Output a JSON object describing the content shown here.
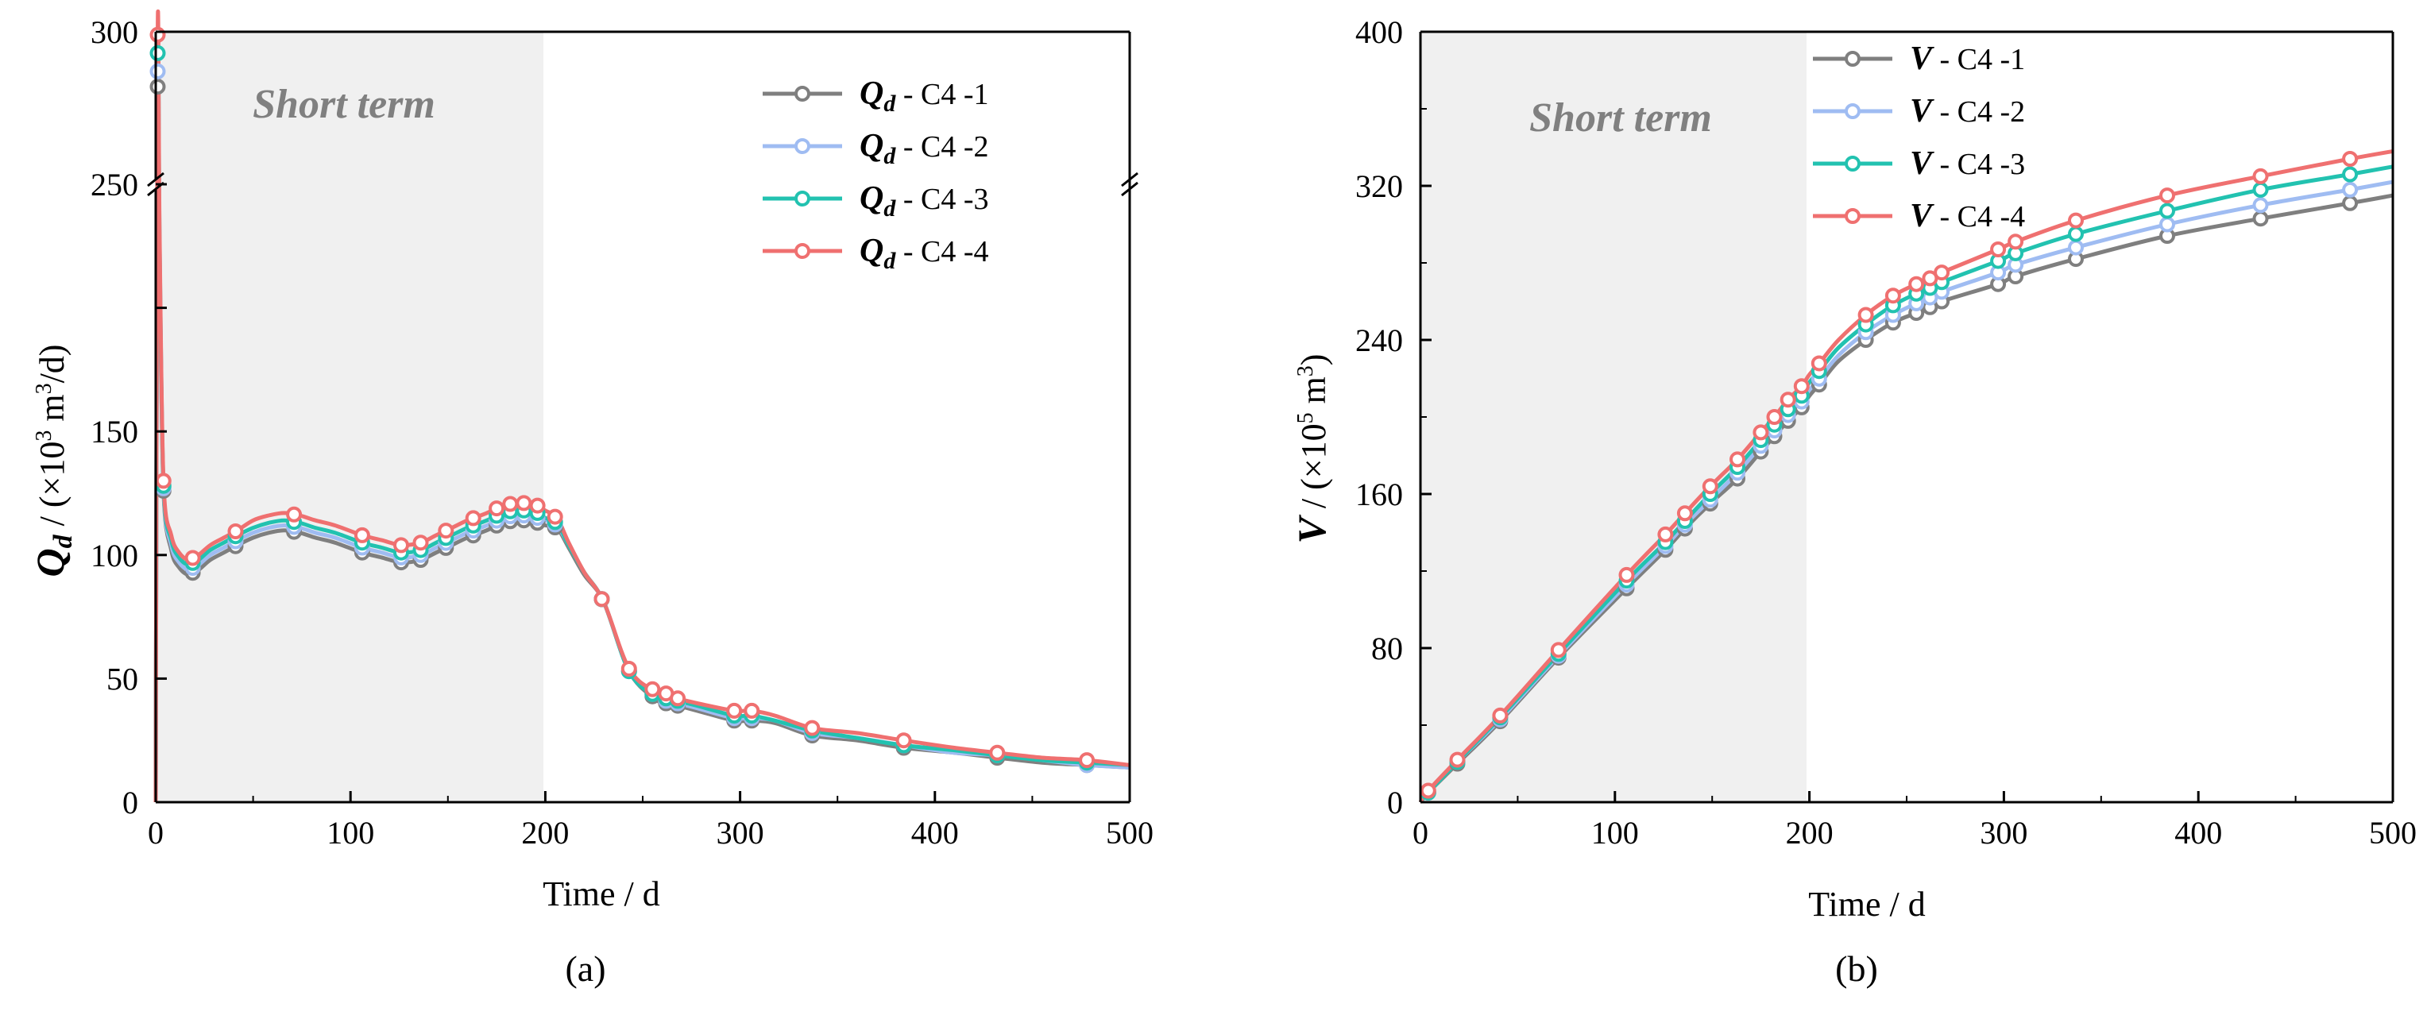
{
  "colors": {
    "C4-1": "#7f7f7f",
    "C4-2": "#9fbcf2",
    "C4-3": "#22c2b0",
    "C4-4": "#ef7070",
    "shade": "#f0f0f0"
  },
  "chart_data": [
    {
      "type": "line",
      "panel": "(a)",
      "title": "",
      "xlabel": "Time / d",
      "ylabel_symbol": "Q",
      "ylabel_subscript": "d",
      "ylabel_unit_pre": " / (×10",
      "ylabel_unit_exp1": "3",
      "ylabel_unit_mid": " m",
      "ylabel_unit_exp2": "3",
      "ylabel_unit_post": "/d)",
      "shaded_region": {
        "x": [
          0,
          200
        ],
        "label": "Short term"
      },
      "xlim": [
        0,
        500
      ],
      "xticks": [
        0,
        100,
        200,
        300,
        400,
        500
      ],
      "ylim": [
        0,
        300
      ],
      "ybreak": [
        250,
        252
      ],
      "yticks": [
        0,
        50,
        100,
        150,
        200,
        250,
        300
      ],
      "ytick_labels": [
        "0",
        "50",
        "100",
        "150",
        "",
        "250",
        "300"
      ],
      "legend": {
        "position": "top-right",
        "symbol": "Q",
        "subscript": "d",
        "entries": [
          "C4 -1",
          "C4 -2",
          "C4 -3",
          "C4 -4"
        ]
      },
      "series": [
        {
          "name": "C4 -1",
          "key": "C4-1",
          "x": [
            0,
            1,
            2,
            4,
            8,
            12,
            17,
            22,
            28,
            35,
            42,
            50,
            58,
            66,
            74,
            82,
            92,
            106,
            116,
            126,
            136,
            144,
            152,
            160,
            170,
            178,
            184,
            190,
            196,
            200,
            206,
            212,
            220,
            230,
            243,
            256,
            262,
            268,
            278,
            297,
            306,
            318,
            337,
            360,
            384,
            410,
            432,
            455,
            478,
            500
          ],
          "y": [
            0,
            282,
            220,
            126,
            102,
            95,
            92,
            94,
            98,
            101,
            104,
            107,
            109,
            110,
            109,
            107,
            105,
            101,
            99,
            97,
            98,
            101,
            104,
            107,
            110,
            113,
            114,
            114,
            113,
            112,
            111,
            103,
            92,
            81,
            53,
            42,
            40,
            39,
            37,
            33,
            33,
            32,
            27,
            25,
            22,
            20,
            18,
            16,
            15,
            14
          ]
        },
        {
          "name": "C4 -2",
          "key": "C4-2",
          "x": [
            0,
            1,
            2,
            4,
            8,
            12,
            17,
            22,
            28,
            35,
            42,
            50,
            58,
            66,
            74,
            82,
            92,
            106,
            116,
            126,
            136,
            144,
            152,
            160,
            170,
            178,
            184,
            190,
            196,
            200,
            206,
            212,
            220,
            230,
            243,
            256,
            262,
            268,
            278,
            297,
            306,
            318,
            337,
            360,
            384,
            410,
            432,
            455,
            478,
            500
          ],
          "y": [
            0,
            287,
            223,
            127,
            104,
            97,
            94,
            96,
            100,
            103,
            106,
            109,
            111,
            112,
            111,
            109,
            107,
            103,
            101,
            99,
            100,
            103,
            106,
            109,
            112,
            115,
            116,
            116,
            115,
            114,
            112,
            104,
            93,
            81,
            53,
            43,
            41,
            40,
            38,
            34,
            34,
            33,
            28,
            26,
            23,
            20,
            19,
            17,
            15,
            14
          ]
        },
        {
          "name": "C4 -3",
          "key": "C4-3",
          "x": [
            0,
            1,
            2,
            4,
            8,
            12,
            17,
            22,
            28,
            35,
            42,
            50,
            58,
            66,
            74,
            82,
            92,
            106,
            116,
            126,
            136,
            144,
            152,
            160,
            170,
            178,
            184,
            190,
            196,
            200,
            206,
            212,
            220,
            230,
            243,
            256,
            262,
            268,
            278,
            297,
            306,
            318,
            337,
            360,
            384,
            410,
            432,
            455,
            478,
            500
          ],
          "y": [
            0,
            293,
            226,
            128,
            106,
            99,
            96,
            98,
            102,
            105,
            108,
            111,
            113,
            114,
            113,
            111,
            109,
            105,
            103,
            101,
            102,
            105,
            108,
            111,
            114,
            117,
            118,
            118,
            117,
            115,
            113,
            104,
            93,
            81,
            53,
            43,
            42,
            41,
            39,
            35,
            35,
            33,
            29,
            26,
            23,
            21,
            19,
            17,
            16,
            15
          ]
        },
        {
          "name": "C4 -4",
          "key": "C4-4",
          "x": [
            0,
            1,
            2,
            4,
            8,
            12,
            17,
            22,
            28,
            35,
            42,
            50,
            58,
            66,
            74,
            82,
            92,
            106,
            116,
            126,
            136,
            144,
            152,
            160,
            170,
            178,
            184,
            190,
            196,
            200,
            206,
            212,
            220,
            230,
            243,
            256,
            262,
            268,
            278,
            297,
            306,
            318,
            337,
            360,
            384,
            410,
            432,
            455,
            478,
            500
          ],
          "y": [
            0,
            299,
            230,
            130,
            108,
            101,
            98,
            100,
            104,
            107,
            110,
            114,
            116,
            117,
            116,
            114,
            112,
            108,
            106,
            104,
            105,
            108,
            111,
            114,
            117,
            120,
            121,
            121,
            120,
            118,
            115,
            105,
            93,
            81,
            54,
            45,
            44,
            42,
            40,
            37,
            37,
            35,
            30,
            28,
            25,
            22,
            20,
            18,
            17,
            15
          ]
        }
      ],
      "marker_x": [
        1,
        4,
        19,
        41,
        71,
        106,
        126,
        136,
        149,
        163,
        175,
        182,
        189,
        196,
        205,
        229,
        243,
        255,
        262,
        268,
        297,
        306,
        337,
        384,
        432,
        478
      ]
    },
    {
      "type": "line",
      "panel": "(b)",
      "title": "",
      "xlabel": "Time / d",
      "ylabel_symbol": "V",
      "ylabel_unit_pre": " / (×10",
      "ylabel_unit_exp1": "5",
      "ylabel_unit_mid": " m",
      "ylabel_unit_exp2": "3",
      "ylabel_unit_post": ")",
      "shaded_region": {
        "x": [
          0,
          200
        ],
        "label": "Short term"
      },
      "xlim": [
        0,
        500
      ],
      "xticks": [
        0,
        100,
        200,
        300,
        400,
        500
      ],
      "ylim": [
        0,
        400
      ],
      "yticks": [
        0,
        80,
        160,
        240,
        320,
        400
      ],
      "legend": {
        "position": "top-center",
        "symbol": "V",
        "entries": [
          "C4 -1",
          "C4 -2",
          "C4 -3",
          "C4 -4"
        ]
      },
      "series": [
        {
          "name": "C4 -1",
          "key": "C4-1",
          "x": [
            0,
            4,
            19,
            41,
            71,
            106,
            126,
            136,
            149,
            163,
            175,
            182,
            189,
            196,
            200,
            206,
            215,
            229,
            243,
            255,
            262,
            268,
            297,
            306,
            337,
            384,
            432,
            478,
            500
          ],
          "y": [
            0,
            5,
            20,
            42,
            75,
            111,
            131,
            142,
            155,
            168,
            182,
            190,
            198,
            205,
            211,
            218,
            229,
            240,
            249,
            254,
            257,
            260,
            269,
            273,
            282,
            294,
            303,
            311,
            315
          ]
        },
        {
          "name": "C4 -2",
          "key": "C4-2",
          "x": [
            0,
            4,
            19,
            41,
            71,
            106,
            126,
            136,
            149,
            163,
            175,
            182,
            189,
            196,
            200,
            206,
            215,
            229,
            243,
            255,
            262,
            268,
            297,
            306,
            337,
            384,
            432,
            478,
            500
          ],
          "y": [
            0,
            5,
            21,
            43,
            76,
            113,
            133,
            144,
            157,
            171,
            185,
            193,
            201,
            208,
            214,
            221,
            232,
            244,
            253,
            259,
            262,
            265,
            275,
            279,
            288,
            300,
            310,
            318,
            322
          ]
        },
        {
          "name": "C4 -3",
          "key": "C4-3",
          "x": [
            0,
            4,
            19,
            41,
            71,
            106,
            126,
            136,
            149,
            163,
            175,
            182,
            189,
            196,
            200,
            206,
            215,
            229,
            243,
            255,
            262,
            268,
            297,
            306,
            337,
            384,
            432,
            478,
            500
          ],
          "y": [
            0,
            5,
            21,
            44,
            77,
            115,
            135,
            146,
            160,
            174,
            188,
            196,
            204,
            211,
            218,
            225,
            236,
            248,
            258,
            264,
            267,
            270,
            281,
            285,
            295,
            307,
            318,
            326,
            330
          ]
        },
        {
          "name": "C4 -4",
          "key": "C4-4",
          "x": [
            0,
            4,
            19,
            41,
            71,
            106,
            126,
            136,
            149,
            163,
            175,
            182,
            189,
            196,
            200,
            206,
            215,
            229,
            243,
            255,
            262,
            268,
            297,
            306,
            337,
            384,
            432,
            478,
            500
          ],
          "y": [
            0,
            6,
            22,
            45,
            79,
            118,
            139,
            150,
            164,
            178,
            192,
            200,
            209,
            216,
            222,
            229,
            240,
            253,
            263,
            269,
            272,
            275,
            287,
            291,
            302,
            315,
            325,
            334,
            338
          ]
        }
      ],
      "marker_x": [
        4,
        19,
        41,
        71,
        106,
        126,
        136,
        149,
        163,
        175,
        182,
        189,
        196,
        205,
        229,
        243,
        255,
        262,
        268,
        297,
        306,
        337,
        384,
        432,
        478
      ]
    }
  ]
}
